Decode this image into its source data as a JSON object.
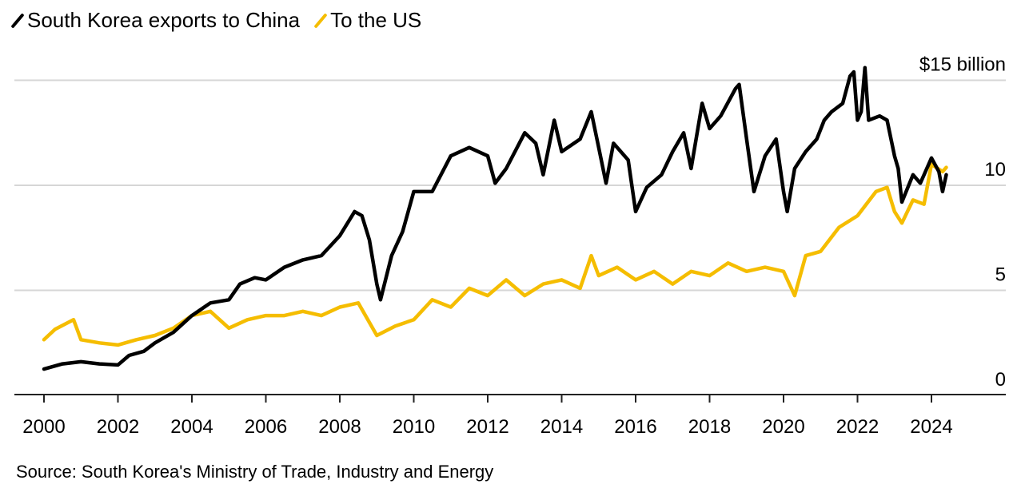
{
  "chart_data": {
    "type": "line",
    "title": "",
    "xlabel": "",
    "ylabel": "",
    "y_unit_label": "$15 billion",
    "ylim": [
      0,
      15
    ],
    "xlim": [
      2000,
      2025.5
    ],
    "y_ticks": [
      {
        "value": 15,
        "label": "$15 billion"
      },
      {
        "value": 10,
        "label": "10"
      },
      {
        "value": 5,
        "label": "5"
      },
      {
        "value": 0,
        "label": "0"
      }
    ],
    "x_ticks": [
      "2000",
      "2002",
      "2004",
      "2006",
      "2008",
      "2010",
      "2012",
      "2014",
      "2016",
      "2018",
      "2020",
      "2022",
      "2024"
    ],
    "x_tick_values": [
      2000,
      2002,
      2004,
      2006,
      2008,
      2010,
      2012,
      2014,
      2016,
      2018,
      2020,
      2022,
      2024
    ],
    "grid": true,
    "legend_placement": "top-left",
    "series": [
      {
        "name": "South Korea exports to China",
        "color": "#000000",
        "x": [
          2000,
          2000.5,
          2001,
          2001.5,
          2002,
          2002.3,
          2002.7,
          2003,
          2003.5,
          2004,
          2004.5,
          2005,
          2005.3,
          2005.7,
          2006,
          2006.5,
          2007,
          2007.5,
          2008,
          2008.4,
          2008.6,
          2008.8,
          2009.0,
          2009.1,
          2009.4,
          2009.7,
          2010,
          2010.5,
          2011,
          2011.5,
          2012,
          2012.2,
          2012.5,
          2013,
          2013.3,
          2013.5,
          2013.8,
          2014,
          2014.5,
          2014.8,
          2015.0,
          2015.2,
          2015.4,
          2015.8,
          2016,
          2016.3,
          2016.7,
          2017,
          2017.3,
          2017.5,
          2017.8,
          2018,
          2018.3,
          2018.7,
          2018.8,
          2019,
          2019.2,
          2019.5,
          2019.8,
          2020.0,
          2020.1,
          2020.3,
          2020.6,
          2020.9,
          2021.1,
          2021.3,
          2021.6,
          2021.8,
          2021.9,
          2022.0,
          2022.1,
          2022.2,
          2022.3,
          2022.6,
          2022.8,
          2023.0,
          2023.1,
          2023.2,
          2023.5,
          2023.7,
          2024.0,
          2024.2,
          2024.3,
          2024.4
        ],
        "values": [
          1.25,
          1.5,
          1.6,
          1.5,
          1.45,
          1.9,
          2.1,
          2.5,
          3.0,
          3.8,
          4.4,
          4.55,
          5.3,
          5.6,
          5.5,
          6.1,
          6.45,
          6.65,
          7.6,
          8.75,
          8.55,
          7.4,
          5.3,
          4.55,
          6.65,
          7.8,
          9.7,
          9.7,
          11.4,
          11.8,
          11.4,
          10.1,
          10.8,
          12.5,
          12.0,
          10.5,
          13.1,
          11.6,
          12.2,
          13.5,
          11.8,
          10.1,
          12.0,
          11.2,
          8.75,
          9.9,
          10.5,
          11.6,
          12.5,
          10.8,
          13.9,
          12.7,
          13.3,
          14.6,
          14.8,
          12.2,
          9.7,
          11.4,
          12.2,
          9.7,
          8.75,
          10.8,
          11.6,
          12.2,
          13.1,
          13.5,
          13.9,
          15.2,
          15.4,
          13.1,
          13.5,
          15.6,
          13.1,
          13.3,
          13.1,
          11.4,
          10.8,
          9.2,
          10.5,
          10.1,
          11.3,
          10.65,
          9.7,
          10.5
        ]
      },
      {
        "name": "To the US",
        "color": "#f5bd00",
        "x": [
          2000,
          2000.3,
          2000.8,
          2001.0,
          2001.5,
          2002,
          2002.5,
          2003,
          2003.5,
          2004,
          2004.5,
          2005,
          2005.5,
          2006,
          2006.5,
          2007,
          2007.5,
          2008,
          2008.5,
          2009,
          2009.5,
          2010,
          2010.5,
          2011,
          2011.5,
          2012,
          2012.5,
          2013,
          2013.5,
          2014,
          2014.5,
          2014.8,
          2015,
          2015.5,
          2016,
          2016.5,
          2017,
          2017.5,
          2018,
          2018.5,
          2019,
          2019.5,
          2020,
          2020.3,
          2020.6,
          2021,
          2021.5,
          2022,
          2022.5,
          2022.8,
          2023,
          2023.2,
          2023.5,
          2023.8,
          2024.0,
          2024.3,
          2024.4
        ],
        "values": [
          2.65,
          3.15,
          3.6,
          2.65,
          2.5,
          2.4,
          2.65,
          2.85,
          3.2,
          3.8,
          4.0,
          3.2,
          3.6,
          3.8,
          3.8,
          4.0,
          3.8,
          4.2,
          4.4,
          2.85,
          3.3,
          3.6,
          4.55,
          4.2,
          5.1,
          4.75,
          5.5,
          4.75,
          5.3,
          5.5,
          5.1,
          6.65,
          5.7,
          6.1,
          5.5,
          5.9,
          5.3,
          5.9,
          5.7,
          6.3,
          5.9,
          6.1,
          5.9,
          4.75,
          6.65,
          6.85,
          8.0,
          8.55,
          9.7,
          9.9,
          8.75,
          8.2,
          9.3,
          9.1,
          11.0,
          10.65,
          10.85
        ]
      }
    ]
  },
  "source": "Source: South Korea's Ministry of Trade, Industry and Energy"
}
